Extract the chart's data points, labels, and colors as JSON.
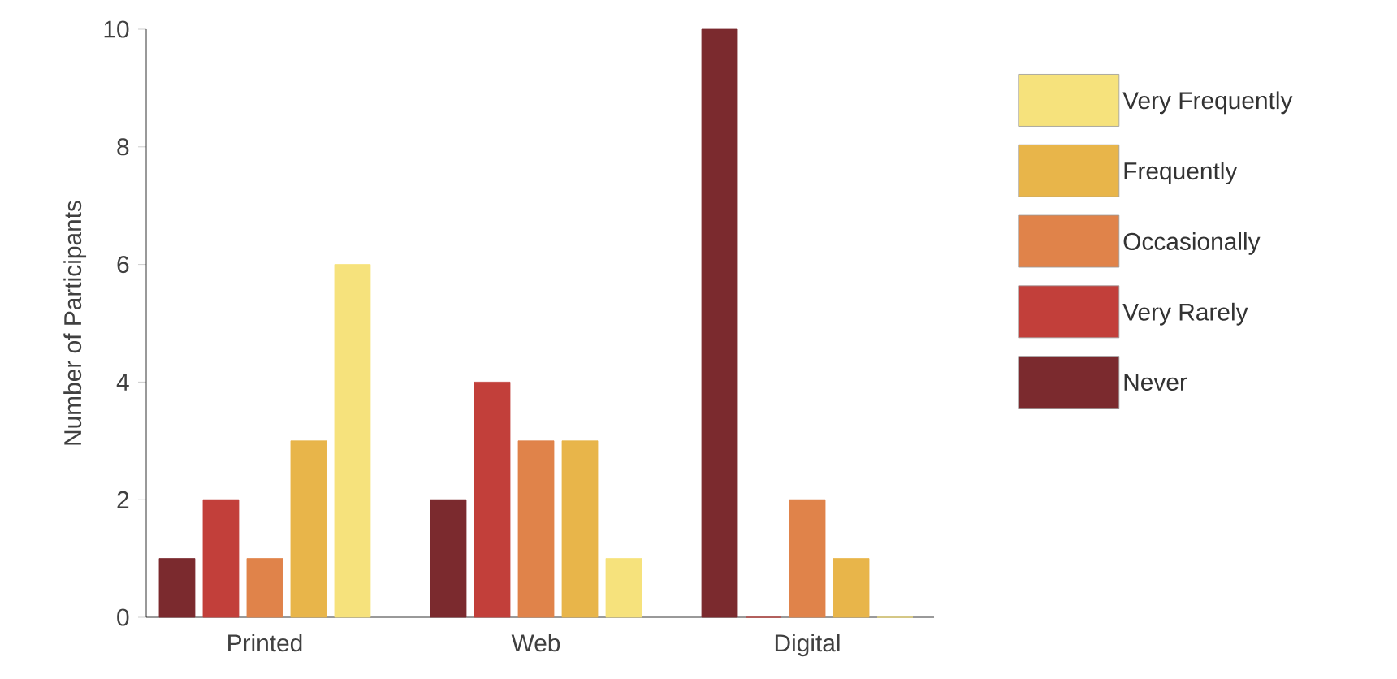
{
  "chart_data": {
    "type": "bar",
    "ylabel": "Number of Participants",
    "categories": [
      "Printed",
      "Web",
      "Digital"
    ],
    "series": [
      {
        "name": "Never",
        "color": "#7b2a2e",
        "values": [
          1,
          2,
          10
        ]
      },
      {
        "name": "Very Rarely",
        "color": "#c23f3a",
        "values": [
          2,
          4,
          0
        ]
      },
      {
        "name": "Occasionally",
        "color": "#e0834a",
        "values": [
          1,
          3,
          2
        ]
      },
      {
        "name": "Frequently",
        "color": "#e8b54a",
        "values": [
          3,
          3,
          1
        ]
      },
      {
        "name": "Very Frequently",
        "color": "#f6e27c",
        "values": [
          6,
          1,
          0
        ]
      }
    ],
    "ylim": [
      0,
      10
    ],
    "yticks": [
      0,
      2,
      4,
      6,
      8,
      10
    ],
    "legend": "right"
  }
}
